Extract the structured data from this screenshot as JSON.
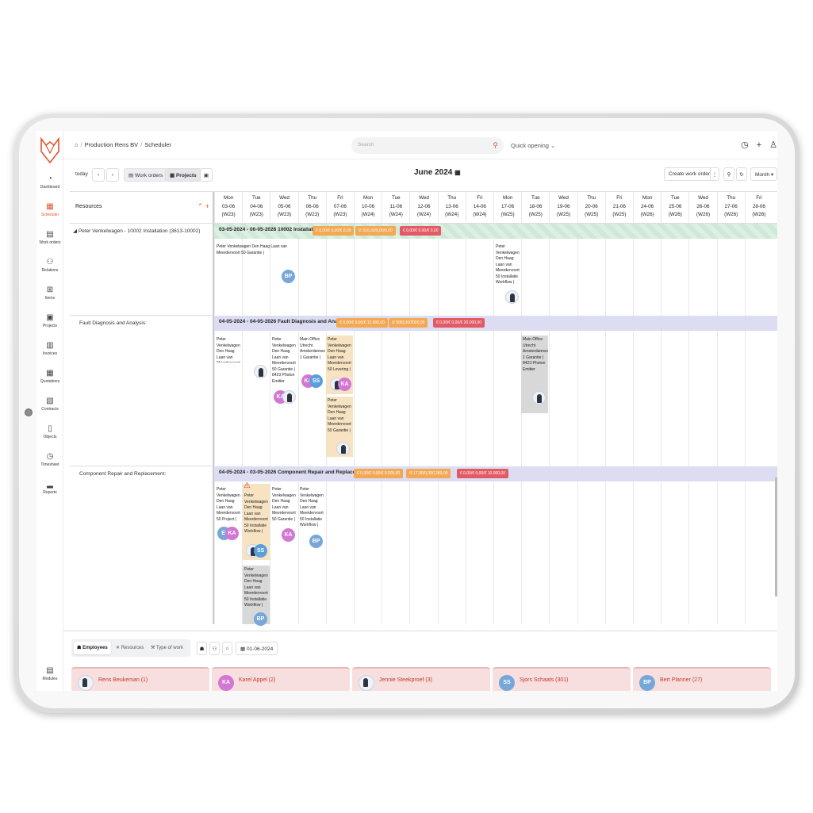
{
  "sidebar": {
    "items": [
      {
        "label": "Dashboard",
        "icon": "dashboard-icon"
      },
      {
        "label": "Scheduler",
        "icon": "calendar-icon",
        "active": true
      },
      {
        "label": "Work orders",
        "icon": "document-icon"
      },
      {
        "label": "Relations",
        "icon": "people-icon"
      },
      {
        "label": "Items",
        "icon": "boxes-icon"
      },
      {
        "label": "Projects",
        "icon": "briefcase-icon"
      },
      {
        "label": "Invoices",
        "icon": "invoice-icon"
      },
      {
        "label": "Quotations",
        "icon": "calculator-icon"
      },
      {
        "label": "Contracts",
        "icon": "contract-icon"
      },
      {
        "label": "Objects",
        "icon": "building-icon"
      },
      {
        "label": "Timesheet",
        "icon": "clock-icon"
      },
      {
        "label": "Reports",
        "icon": "chart-icon"
      }
    ],
    "modules": "Modules"
  },
  "header": {
    "breadcrumb": [
      "Production Rens BV",
      "Scheduler"
    ],
    "search_placeholder": "Search",
    "quick_opening": "Quick opening"
  },
  "toolbar": {
    "today": "today",
    "work_orders": "Work orders",
    "projects": "Projects",
    "title": "June 2024",
    "create": "Create work order",
    "view": "Month"
  },
  "grid": {
    "resources_label": "Resources",
    "days": [
      {
        "d": "Mon",
        "date": "03-06",
        "wk": "(W23)"
      },
      {
        "d": "Tue",
        "date": "04-06",
        "wk": "(W23)"
      },
      {
        "d": "Wed",
        "date": "05-06",
        "wk": "(W23)"
      },
      {
        "d": "Thu",
        "date": "06-06",
        "wk": "(W23)"
      },
      {
        "d": "Fri",
        "date": "07-06",
        "wk": "(W23)"
      },
      {
        "d": "Mon",
        "date": "10-06",
        "wk": "(W24)"
      },
      {
        "d": "Tue",
        "date": "11-06",
        "wk": "(W24)"
      },
      {
        "d": "Wed",
        "date": "12-06",
        "wk": "(W24)"
      },
      {
        "d": "Thu",
        "date": "13-06",
        "wk": "(W24)"
      },
      {
        "d": "Fri",
        "date": "14-06",
        "wk": "(W24)"
      },
      {
        "d": "Mon",
        "date": "17-06",
        "wk": "(W25)"
      },
      {
        "d": "Tue",
        "date": "18-06",
        "wk": "(W25)"
      },
      {
        "d": "Wed",
        "date": "19-06",
        "wk": "(W25)"
      },
      {
        "d": "Thu",
        "date": "20-06",
        "wk": "(W25)"
      },
      {
        "d": "Fri",
        "date": "21-06",
        "wk": "(W25)"
      },
      {
        "d": "Mon",
        "date": "24-06",
        "wk": "(W26)"
      },
      {
        "d": "Tue",
        "date": "25-06",
        "wk": "(W26)"
      },
      {
        "d": "Wed",
        "date": "26-06",
        "wk": "(W26)"
      },
      {
        "d": "Thu",
        "date": "27-06",
        "wk": "(W26)"
      },
      {
        "d": "Fri",
        "date": "28-06",
        "wk": "(W26)"
      }
    ],
    "rows": [
      "Peter Venkelwagen - 10002 Installation (3613-10002)",
      "Fault Diagnosis and Analysis:",
      "Component Repair and Replacement:"
    ],
    "bars": [
      {
        "label": "03-05-2024 - 06-05-2026 10002 Installation",
        "pills": [
          "€ 0,00/€ 0,00/€ 0,00",
          "⏱ 310,33/0,00/0,00",
          "€ 0,00/€ 0,00/€ 0,00"
        ]
      },
      {
        "label": "04-05-2024 - 04-05-2026 Fault Diagnosis and Analysis",
        "pills": [
          "€ 0,00/€ 0,00/€ 12.000,00",
          "⏱ 50/0,00/2000,00",
          "€ 0,00/€ 0,00/€ 20.000,00"
        ]
      },
      {
        "label": "04-05-2024 - 03-05-2026 Component Repair and Replacement",
        "pills": [
          "€ 0,00/€ 0,00/€ 0.000,00",
          "⏱ 17,00/0,00/1280,00",
          "€ 0,00/€ 0,00/€ 10.000,00"
        ]
      }
    ],
    "cards": {
      "c1": "Peter Venkelwagen Den Haag Laan van Meerdervoort 50 Garantie |",
      "c2": "Peter Venkelwagen Den Haag Laan van Meerdervoort 50 Installatie Workflow |",
      "c3": "Peter Venkelwagen Den Haag Laan van Meerdervoort 50 Levering | 6272 Laser Engraver",
      "c4": "Peter Venkelwagen Den Haag Laan van Meerdervoort 50 Garantie | 8423 Photon Emitter",
      "c5": "Main Office Utrecht Amsterdamsestraatweg 1 Garantie |",
      "c6": "Peter Venkelwagen Den Haag Laan van Meerdervoort 50 Levering |",
      "c7": "Peter Venkelwagen Den Haag Laan van Meerdervoort 50 Garantie |",
      "c8": "Main Office Utrecht Amsterdamsestraatweg 1 Garantie | 8423 Photon Emitter",
      "c9": "Peter Venkelwagen Den Haag Laan van Meerdervoort 50 Project |",
      "c10": "Peter Venkelwagen Den Haag Laan van Meerdervoort 50 Installatie Workflow |",
      "c11": "Peter Venkelwagen Den Haag Laan van Meerdervoort 50 Garantie |",
      "c12": "Peter Venkelwagen Den Haag Laan van Meerdervoort 50 Installatie Workflow |",
      "c13": "Peter Venkelwagen Den Haag Laan van Meerdervoort 50 Installatie Workflow |"
    },
    "avatars": {
      "bp": "BP",
      "ka": "KA",
      "ss": "SS",
      "ei": "EI"
    }
  },
  "bottom": {
    "tabs": [
      "Employees",
      "Resources",
      "Type of work"
    ],
    "date": "01-06-2024",
    "employees": [
      {
        "name": "Rens Beukeman (1)",
        "initials": ""
      },
      {
        "name": "Karel Appel (2)",
        "initials": "KA"
      },
      {
        "name": "Jennie Steekproef (3)",
        "initials": ""
      },
      {
        "name": "Sjors Schaats (301)",
        "initials": "SS"
      },
      {
        "name": "Bert Planner (27)",
        "initials": "BP"
      }
    ]
  },
  "colors": {
    "accent": "#e2542a",
    "orange_pill": "#f3a853",
    "red_pill": "#e35a64",
    "lavender_bar": "#dcdcf2"
  }
}
